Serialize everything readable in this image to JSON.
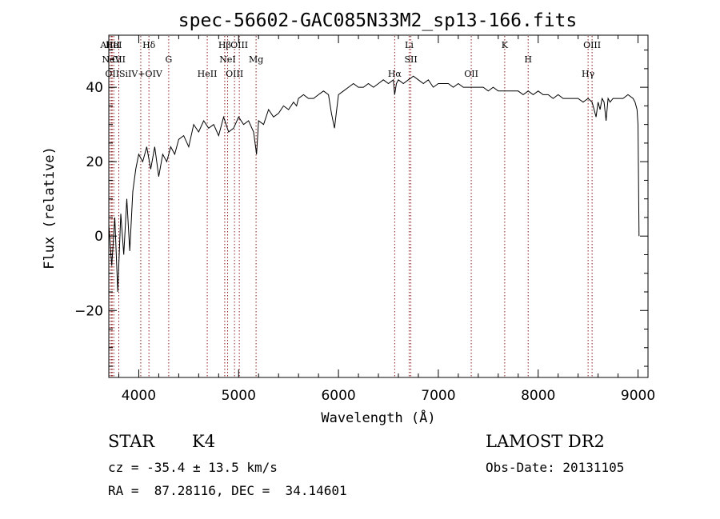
{
  "chart_data": {
    "type": "line",
    "title": "spec-56602-GAC085N33M2_sp13-166.fits",
    "xlabel": "Wavelength (Å)",
    "ylabel": "Flux (relative)",
    "xlim": [
      3700,
      9100
    ],
    "ylim": [
      -38,
      54
    ],
    "xticks": [
      4000,
      5000,
      6000,
      7000,
      8000,
      9000
    ],
    "yticks": [
      -20,
      0,
      20,
      40
    ],
    "series": [
      {
        "x": [
          3700,
          3730,
          3760,
          3790,
          3820,
          3850,
          3880,
          3910,
          3940,
          3970,
          4000,
          4040,
          4080,
          4120,
          4160,
          4200,
          4240,
          4280,
          4320,
          4360,
          4400,
          4450,
          4500,
          4550,
          4600,
          4650,
          4700,
          4750,
          4800,
          4850,
          4900,
          4950,
          5000,
          5050,
          5100,
          5150,
          5180,
          5200,
          5250,
          5300,
          5350,
          5400,
          5450,
          5500,
          5550,
          5580,
          5600,
          5650,
          5700,
          5750,
          5800,
          5850,
          5900,
          5930,
          5960,
          6000,
          6050,
          6100,
          6150,
          6200,
          6250,
          6300,
          6350,
          6400,
          6450,
          6500,
          6550,
          6563,
          6580,
          6600,
          6650,
          6700,
          6750,
          6800,
          6850,
          6900,
          6950,
          7000,
          7050,
          7100,
          7150,
          7200,
          7250,
          7300,
          7350,
          7400,
          7450,
          7500,
          7550,
          7600,
          7650,
          7700,
          7750,
          7800,
          7850,
          7900,
          7950,
          8000,
          8050,
          8100,
          8150,
          8200,
          8250,
          8300,
          8350,
          8400,
          8450,
          8500,
          8540,
          8580,
          8600,
          8620,
          8640,
          8660,
          8680,
          8700,
          8720,
          8750,
          8800,
          8850,
          8900,
          8950,
          8970,
          8990,
          9000,
          9010
        ],
        "y": [
          3,
          -8,
          5,
          -15,
          6,
          -5,
          10,
          -4,
          12,
          18,
          22,
          20,
          24,
          18,
          24,
          16,
          22,
          20,
          24,
          22,
          26,
          27,
          24,
          30,
          28,
          31,
          29,
          30,
          27,
          32,
          28,
          29,
          32,
          30,
          31,
          28,
          22,
          31,
          30,
          34,
          32,
          33,
          35,
          34,
          36,
          35,
          37,
          38,
          37,
          37,
          38,
          39,
          38,
          33,
          29,
          38,
          39,
          40,
          41,
          40,
          40,
          41,
          40,
          41,
          42,
          41,
          42,
          38,
          41,
          42,
          41,
          42,
          43,
          42,
          41,
          42,
          40,
          41,
          41,
          41,
          40,
          41,
          40,
          40,
          40,
          40,
          40,
          39,
          40,
          39,
          39,
          39,
          39,
          39,
          38,
          39,
          38,
          39,
          38,
          38,
          37,
          38,
          37,
          37,
          37,
          37,
          36,
          37,
          36,
          32,
          36,
          34,
          37,
          36,
          31,
          37,
          36,
          37,
          37,
          37,
          38,
          37,
          36,
          34,
          30,
          0
        ]
      }
    ],
    "lines": [
      {
        "label": "AlIII",
        "wave": 3713
      },
      {
        "label": "NeV",
        "wave": 3727
      },
      {
        "label": "OII",
        "wave": 3734
      },
      {
        "label": "HeI",
        "wave": 3750
      },
      {
        "label": "CII",
        "wave": 3800
      },
      {
        "label": "SiIV+OIV",
        "wave": 4020
      },
      {
        "label": "Hδ",
        "wave": 4102
      },
      {
        "label": "G",
        "wave": 4300
      },
      {
        "label": "HeII",
        "wave": 4686
      },
      {
        "label": "Hβ",
        "wave": 4861
      },
      {
        "label": "NeI",
        "wave": 4890
      },
      {
        "label": "OIII",
        "wave": 4959
      },
      {
        "label": "OIII",
        "wave": 5007
      },
      {
        "label": "Mg",
        "wave": 5175
      },
      {
        "label": "Hα",
        "wave": 6563
      },
      {
        "label": "Li",
        "wave": 6708
      },
      {
        "label": "SII",
        "wave": 6725
      },
      {
        "label": "OII",
        "wave": 7330
      },
      {
        "label": "K",
        "wave": 7665
      },
      {
        "label": "H",
        "wave": 7900
      },
      {
        "label": "Hγ",
        "wave": 8500
      },
      {
        "label": "OIII",
        "wave": 8540
      }
    ]
  },
  "info": {
    "class": "STAR",
    "subclass": "K4",
    "survey": "LAMOST DR2",
    "cz": "cz = -35.4 ± 13.5 km/s",
    "obsdate": "Obs-Date: 20131105",
    "radec": "RA =  87.28116, DEC =  34.14601"
  }
}
